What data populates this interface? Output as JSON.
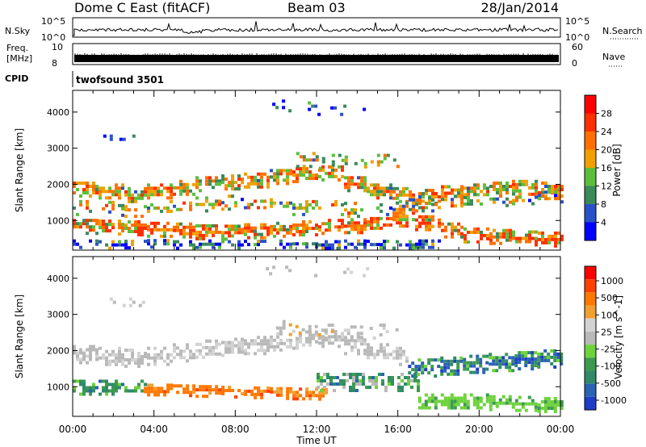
{
  "header": {
    "station": "Dome C East (fitACF)",
    "beam": "Beam 03",
    "date": "28/Jan/2014"
  },
  "top_panels": {
    "nsky_label": "N.Sky",
    "nsky_ticks": [
      "10^5",
      "10^0"
    ],
    "nsearch_label": "N.Search",
    "freq_label": "Freq.",
    "freq_unit": "[MHz]",
    "freq_ticks": [
      "10",
      "8"
    ],
    "nave_label": "Nave",
    "nave_ticks": [
      "60",
      "0"
    ],
    "cpid_label": "CPID",
    "cpid_value": "twofsound 3501"
  },
  "chart_data": [
    {
      "type": "heatmap",
      "parameter": "Power",
      "x_ticks": [
        "00:00",
        "04:00",
        "08:00",
        "12:00",
        "16:00",
        "20:00",
        "00:00"
      ],
      "xlim_hours": [
        0,
        24
      ],
      "ylabel": "Slant Range [km]",
      "y_ticks": [
        1000,
        2000,
        3000,
        4000
      ],
      "ylim": [
        180,
        4600
      ],
      "colorbar": {
        "label": "Power [dB]",
        "ticks": [
          "4",
          "8",
          "12",
          "16",
          "20",
          "24",
          "28"
        ],
        "colors": [
          "#0000ff",
          "#2a52c8",
          "#3a8a5a",
          "#5cbf3c",
          "#f0a000",
          "#ff7000",
          "#ff3000",
          "#ff0000"
        ]
      },
      "bands": [
        {
          "start": 0,
          "end": 24,
          "center": [
            1850,
            1800,
            1700,
            1800,
            1900,
            2000,
            2050,
            2100,
            2200,
            2250,
            2300,
            2000,
            1800,
            1700,
            1650,
            1750,
            1800,
            1850,
            1900,
            1850
          ],
          "half_width": 220,
          "density": 0.85,
          "color_weights": [
            0,
            0.02,
            0.1,
            0.25,
            0.25,
            0.25,
            0.13
          ]
        },
        {
          "start": 0,
          "end": 24,
          "center": [
            800,
            780,
            760,
            720,
            700,
            650,
            640,
            680,
            720,
            760,
            800,
            820,
            850,
            1000,
            900,
            700,
            560,
            520,
            480,
            450
          ],
          "half_width": 200,
          "density": 0.85,
          "color_weights": [
            0,
            0,
            0.05,
            0.15,
            0.2,
            0.3,
            0.3
          ]
        },
        {
          "start": 0,
          "end": 24,
          "center": [
            1300,
            1280,
            1250,
            1300,
            1350,
            1400,
            1450,
            1400,
            1350,
            1300,
            1300,
            1250,
            1300,
            1350,
            1400,
            1450,
            1500,
            1550,
            1600,
            1650
          ],
          "half_width": 180,
          "density": 0.45,
          "color_weights": [
            0.05,
            0.1,
            0.2,
            0.2,
            0.25,
            0.15,
            0.05
          ]
        },
        {
          "start": 0,
          "end": 18,
          "center": [
            320,
            300,
            310,
            330,
            300,
            320,
            300,
            310,
            320,
            330,
            300,
            320,
            310,
            300,
            320,
            330,
            300,
            310,
            320,
            300
          ],
          "half_width": 110,
          "density": 0.6,
          "color_weights": [
            0.35,
            0.3,
            0.2,
            0.1,
            0.05,
            0,
            0
          ]
        },
        {
          "start": 9.5,
          "end": 15,
          "center": [
            4250,
            4200,
            4150,
            4100,
            4200,
            4250,
            4300,
            4200,
            4150,
            4100,
            4050,
            4100,
            4200,
            4250,
            4300,
            4200,
            4100,
            4050,
            4000,
            4100
          ],
          "half_width": 160,
          "density": 0.18,
          "color_weights": [
            0.3,
            0.3,
            0.3,
            0.1,
            0,
            0,
            0
          ]
        },
        {
          "start": 1.5,
          "end": 3.5,
          "center": [
            3300,
            3300,
            3300,
            3300,
            3300,
            3300,
            3300,
            3300,
            3300,
            3300,
            3300,
            3300,
            3300,
            3300,
            3300,
            3300,
            3300,
            3300,
            3300,
            3300
          ],
          "half_width": 100,
          "density": 0.2,
          "color_weights": [
            0.6,
            0.3,
            0.1,
            0,
            0,
            0,
            0
          ]
        },
        {
          "start": 11,
          "end": 16,
          "center": [
            2600,
            2650,
            2700,
            2650,
            2600,
            2550,
            2600,
            2650,
            2700,
            2650,
            2600,
            2550,
            2600,
            2650,
            2700,
            2650,
            2600,
            2550,
            2600,
            2650
          ],
          "half_width": 200,
          "density": 0.3,
          "color_weights": [
            0,
            0.05,
            0.3,
            0.35,
            0.2,
            0.1,
            0
          ]
        }
      ]
    },
    {
      "type": "heatmap",
      "parameter": "Velocity",
      "x_ticks": [
        "00:00",
        "04:00",
        "08:00",
        "12:00",
        "16:00",
        "20:00",
        "00:00"
      ],
      "xlim_hours": [
        0,
        24
      ],
      "xlabel": "Time UT",
      "ylabel": "Slant Range [km]",
      "y_ticks": [
        1000,
        2000,
        3000,
        4000
      ],
      "ylim": [
        180,
        4600
      ],
      "colorbar": {
        "label": "Velocity [m s^-1]",
        "ticks": [
          "1000",
          "500",
          "100",
          "25",
          "-25",
          "-100",
          "-500",
          "-1000"
        ],
        "colors": [
          "#1e3cc8",
          "#2a62b4",
          "#2f8a6a",
          "#3c9a50",
          "#6ed23c",
          "#b9b9b9",
          "#d2d2d2",
          "#f0a030",
          "#ff7800",
          "#ff4000",
          "#ff0000"
        ]
      },
      "bands": [
        {
          "start": 0,
          "end": 16.5,
          "center": [
            1850,
            1800,
            1750,
            1800,
            1900,
            2000,
            2050,
            2100,
            2200,
            2250,
            2300,
            2100,
            1900,
            1800,
            1700,
            1750,
            1800,
            1850,
            1900,
            1850
          ],
          "half_width": 230,
          "density": 0.8,
          "color_weights": [
            0,
            0,
            0,
            0,
            0,
            0.6,
            0.4,
            0,
            0,
            0,
            0
          ]
        },
        {
          "start": 16.5,
          "end": 24,
          "center": [
            1500,
            1500,
            1500,
            1500,
            1500,
            1500,
            1500,
            1500,
            1500,
            1500,
            1500,
            1500,
            1500,
            1500,
            1500,
            1550,
            1600,
            1650,
            1700,
            1750
          ],
          "half_width": 250,
          "density": 0.8,
          "color_weights": [
            0.1,
            0.3,
            0.3,
            0.2,
            0.1,
            0,
            0,
            0,
            0,
            0,
            0
          ]
        },
        {
          "start": 3.5,
          "end": 12.5,
          "center": [
            900,
            900,
            900,
            900,
            880,
            860,
            840,
            820,
            800,
            790,
            780,
            800,
            820,
            850,
            880,
            900,
            900,
            900,
            900,
            900
          ],
          "half_width": 170,
          "density": 0.85,
          "color_weights": [
            0,
            0,
            0,
            0,
            0,
            0,
            0,
            0.15,
            0.75,
            0.1,
            0
          ]
        },
        {
          "start": 0,
          "end": 3.5,
          "center": [
            950,
            950,
            950,
            950,
            950,
            950,
            950,
            950,
            950,
            950,
            950,
            950,
            950,
            950,
            950,
            950,
            950,
            950,
            950,
            950
          ],
          "half_width": 200,
          "density": 0.75,
          "color_weights": [
            0,
            0.1,
            0.4,
            0.4,
            0.1,
            0,
            0,
            0,
            0,
            0,
            0
          ]
        },
        {
          "start": 12,
          "end": 17,
          "center": [
            1100,
            1100,
            1100,
            1100,
            1100,
            1100,
            1100,
            1100,
            1100,
            1100,
            1100,
            1100,
            1100,
            1100,
            1100,
            1100,
            1100,
            1100,
            1100,
            1100
          ],
          "half_width": 250,
          "density": 0.7,
          "color_weights": [
            0,
            0.1,
            0.3,
            0.3,
            0.1,
            0.2,
            0,
            0,
            0,
            0,
            0
          ]
        },
        {
          "start": 17,
          "end": 24,
          "center": [
            550,
            550,
            550,
            550,
            550,
            550,
            550,
            550,
            550,
            550,
            550,
            550,
            550,
            550,
            550,
            550,
            550,
            500,
            480,
            450
          ],
          "half_width": 180,
          "density": 0.85,
          "color_weights": [
            0,
            0,
            0,
            0.2,
            0.8,
            0,
            0,
            0,
            0,
            0,
            0
          ]
        },
        {
          "start": 9.5,
          "end": 15,
          "center": [
            4250,
            4200,
            4150,
            4100,
            4200,
            4250,
            4300,
            4200,
            4150,
            4100,
            4050,
            4100,
            4200,
            4250,
            4300,
            4200,
            4100,
            4050,
            4000,
            4100
          ],
          "half_width": 160,
          "density": 0.18,
          "color_weights": [
            0,
            0,
            0,
            0,
            0,
            0.6,
            0.4,
            0,
            0,
            0,
            0
          ]
        },
        {
          "start": 1.5,
          "end": 3.5,
          "center": [
            3300,
            3300,
            3300,
            3300,
            3300,
            3300,
            3300,
            3300,
            3300,
            3300,
            3300,
            3300,
            3300,
            3300,
            3300,
            3300,
            3300,
            3300,
            3300,
            3300
          ],
          "half_width": 100,
          "density": 0.2,
          "color_weights": [
            0,
            0,
            0,
            0,
            0,
            0.5,
            0.5,
            0,
            0,
            0,
            0
          ]
        },
        {
          "start": 10,
          "end": 16,
          "center": [
            2500,
            2550,
            2600,
            2550,
            2500,
            2450,
            2500,
            2550,
            2600,
            2550,
            2500,
            2450,
            2500,
            2550,
            2600,
            2550,
            2500,
            2450,
            2500,
            2550
          ],
          "half_width": 200,
          "density": 0.35,
          "color_weights": [
            0,
            0,
            0,
            0,
            0,
            0.7,
            0.2,
            0.1,
            0,
            0,
            0
          ]
        }
      ]
    }
  ]
}
